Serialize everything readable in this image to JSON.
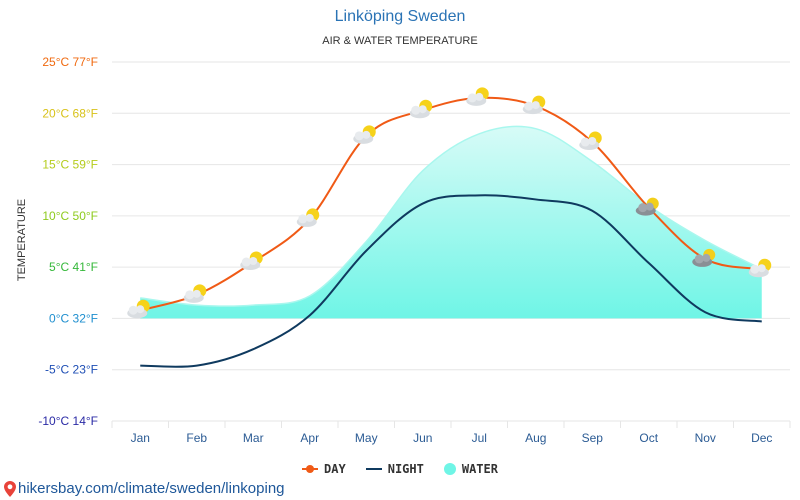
{
  "colors": {
    "day": "#f05a16",
    "night": "#0f3a5f",
    "water_fill": "#6ff5e6",
    "water_edge": "#a9f7ee",
    "grid": "#e6e6e6",
    "title": "#2a73b5",
    "month": "#2b5b94",
    "source": "#1e5799"
  },
  "chart_data": {
    "type": "line",
    "title": "Linköping Sweden",
    "subtitle": "AIR & WATER TEMPERATURE",
    "ylabel": "TEMPERATURE",
    "ylim": [
      -10,
      25
    ],
    "yticks": [
      {
        "value": 25,
        "label": "25°C 77°F",
        "color": "#f06a10"
      },
      {
        "value": 20,
        "label": "20°C 68°F",
        "color": "#d8c21a"
      },
      {
        "value": 15,
        "label": "15°C 59°F",
        "color": "#b5cc1c"
      },
      {
        "value": 10,
        "label": "10°C 50°F",
        "color": "#8ecb1e"
      },
      {
        "value": 5,
        "label": "5°C 41°F",
        "color": "#35b83a"
      },
      {
        "value": 0,
        "label": "0°C 32°F",
        "color": "#1f8fcf"
      },
      {
        "value": -5,
        "label": "-5°C 23°F",
        "color": "#1f4fb5"
      },
      {
        "value": -10,
        "label": "-10°C 14°F",
        "color": "#2a2aa5"
      }
    ],
    "categories": [
      "Jan",
      "Feb",
      "Mar",
      "Apr",
      "May",
      "Jun",
      "Jul",
      "Aug",
      "Sep",
      "Oct",
      "Nov",
      "Dec"
    ],
    "series": [
      {
        "name": "DAY",
        "values": [
          0.8,
          2.3,
          5.5,
          9.7,
          17.8,
          20.3,
          21.5,
          20.7,
          17.2,
          10.8,
          5.8,
          4.8
        ]
      },
      {
        "name": "NIGHT",
        "values": [
          -4.6,
          -4.6,
          -3.0,
          0.3,
          6.6,
          11.2,
          12.0,
          11.6,
          10.5,
          5.4,
          0.6,
          -0.3
        ]
      },
      {
        "name": "WATER",
        "values": [
          2.0,
          1.3,
          1.3,
          2.2,
          7.5,
          14.4,
          18.0,
          18.5,
          15.3,
          11.0,
          7.6,
          4.8
        ]
      }
    ],
    "icons": [
      "partly-cloudy",
      "partly-cloudy",
      "partly-cloudy",
      "partly-cloudy",
      "partly-cloudy",
      "partly-cloudy",
      "partly-cloudy",
      "partly-cloudy",
      "partly-cloudy",
      "cloudy-sun",
      "cloudy-sun",
      "partly-cloudy"
    ],
    "legend": [
      {
        "key": "day",
        "label": "DAY"
      },
      {
        "key": "night",
        "label": "NIGHT"
      },
      {
        "key": "water",
        "label": "WATER"
      }
    ]
  },
  "source": {
    "icon": "map-pin-icon",
    "text": "hikersbay.com/climate/sweden/linkoping"
  }
}
